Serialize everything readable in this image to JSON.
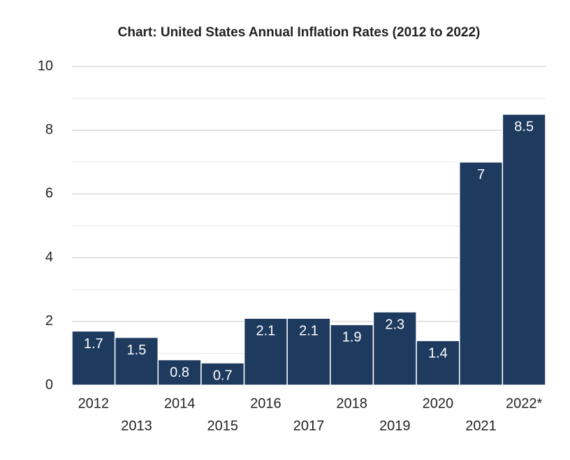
{
  "chart_data": {
    "type": "bar",
    "title": "Chart: United States Annual Inflation Rates (2012 to 2022)",
    "categories": [
      "2012",
      "2013",
      "2014",
      "2015",
      "2016",
      "2017",
      "2018",
      "2019",
      "2020",
      "2021",
      "2022*"
    ],
    "values": [
      1.7,
      1.5,
      0.8,
      0.7,
      2.1,
      2.1,
      1.9,
      2.3,
      1.4,
      7,
      8.5
    ],
    "color": "#1e3a5f",
    "ylim": [
      0,
      10
    ],
    "yticks": [
      0,
      2,
      4,
      6,
      8,
      10
    ],
    "minor_yticks": [
      1,
      3,
      5,
      7,
      9
    ],
    "grid": true
  }
}
